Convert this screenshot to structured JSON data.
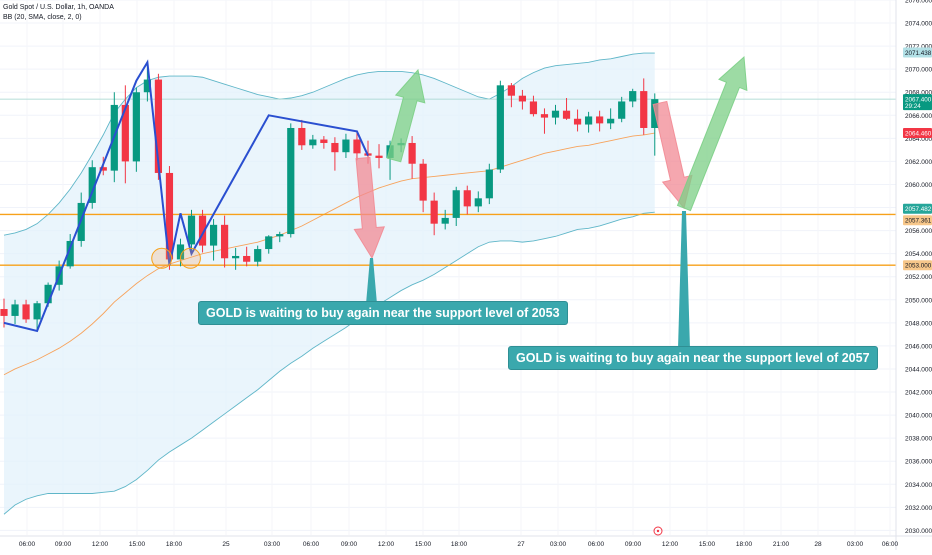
{
  "header": {
    "symbol_line": "Gold Spot / U.S. Dollar, 1h, OANDA",
    "indicator_line": "BB (20, SMA, close, 2, 0)"
  },
  "annotations": {
    "callout_1": "GOLD is waiting to buy again near the support level of 2053",
    "callout_2": "GOLD is waiting to buy again near the support level of 2057"
  },
  "colors": {
    "up": "#089981",
    "down": "#f23645",
    "bb_fill": "#e3f2fb",
    "bb_band": "#5fb6c8",
    "bb_basis": "#f7a35c",
    "support": "#f7a11a",
    "zigzag": "#2a4fd0",
    "arrow_up": "#7ccf86",
    "arrow_down": "#f28a94",
    "callout_bg": "#3aa8ad"
  },
  "chart_data": {
    "type": "candlestick",
    "title": "Gold Spot / U.S. Dollar, 1h, OANDA",
    "ylim": [
      2029.6,
      2076.0
    ],
    "y_ticks": [
      "2076.000",
      "2074.000",
      "2072.000",
      "2070.000",
      "2068.000",
      "2066.000",
      "2064.000",
      "2062.000",
      "2060.000",
      "2058.000",
      "2056.000",
      "2054.000",
      "2052.000",
      "2050.000",
      "2048.000",
      "2046.000",
      "2044.000",
      "2042.000",
      "2040.000",
      "2038.000",
      "2036.000",
      "2034.000",
      "2032.000",
      "2030.000"
    ],
    "x_ticks": [
      "06:00",
      "09:00",
      "12:00",
      "15:00",
      "18:00",
      "25",
      "03:00",
      "06:00",
      "09:00",
      "12:00",
      "15:00",
      "18:00",
      "27",
      "03:00",
      "06:00",
      "09:00",
      "12:00",
      "15:00",
      "18:00",
      "21:00",
      "28",
      "03:00",
      "06:00"
    ],
    "price_labels": {
      "upper_band": "2071.438",
      "last_price": "2067.400",
      "countdown": "29:24",
      "bb_basis": "2064.460",
      "support_upper": "2057.482",
      "support_upper_2": "2057.361",
      "support_lower": "2053.000"
    },
    "support_levels": [
      2057.4,
      2053.0
    ],
    "candles": [
      {
        "o": 2049.2,
        "h": 2050.1,
        "l": 2047.6,
        "c": 2048.6
      },
      {
        "o": 2048.6,
        "h": 2050.0,
        "l": 2047.9,
        "c": 2049.6
      },
      {
        "o": 2049.6,
        "h": 2050.0,
        "l": 2048.0,
        "c": 2048.3
      },
      {
        "o": 2048.3,
        "h": 2049.9,
        "l": 2047.3,
        "c": 2049.7
      },
      {
        "o": 2049.7,
        "h": 2051.5,
        "l": 2049.4,
        "c": 2051.3
      },
      {
        "o": 2051.3,
        "h": 2053.4,
        "l": 2050.8,
        "c": 2052.9
      },
      {
        "o": 2052.9,
        "h": 2055.7,
        "l": 2052.7,
        "c": 2055.1
      },
      {
        "o": 2055.1,
        "h": 2059.3,
        "l": 2054.6,
        "c": 2058.4
      },
      {
        "o": 2058.4,
        "h": 2062.1,
        "l": 2057.9,
        "c": 2061.5
      },
      {
        "o": 2061.5,
        "h": 2062.4,
        "l": 2060.8,
        "c": 2061.2
      },
      {
        "o": 2061.2,
        "h": 2068.0,
        "l": 2060.2,
        "c": 2066.9
      },
      {
        "o": 2066.9,
        "h": 2068.6,
        "l": 2060.1,
        "c": 2062.0
      },
      {
        "o": 2062.0,
        "h": 2068.4,
        "l": 2061.1,
        "c": 2068.0
      },
      {
        "o": 2068.0,
        "h": 2070.4,
        "l": 2067.2,
        "c": 2069.1
      },
      {
        "o": 2069.1,
        "h": 2069.6,
        "l": 2060.4,
        "c": 2061.0
      },
      {
        "o": 2061.0,
        "h": 2061.6,
        "l": 2052.6,
        "c": 2053.5
      },
      {
        "o": 2053.5,
        "h": 2055.3,
        "l": 2052.9,
        "c": 2054.8
      },
      {
        "o": 2054.8,
        "h": 2057.8,
        "l": 2054.0,
        "c": 2057.3
      },
      {
        "o": 2057.3,
        "h": 2057.8,
        "l": 2054.1,
        "c": 2054.7
      },
      {
        "o": 2054.7,
        "h": 2057.0,
        "l": 2053.4,
        "c": 2056.5
      },
      {
        "o": 2056.5,
        "h": 2057.3,
        "l": 2052.8,
        "c": 2053.6
      },
      {
        "o": 2053.6,
        "h": 2054.5,
        "l": 2052.6,
        "c": 2053.8
      },
      {
        "o": 2053.8,
        "h": 2054.6,
        "l": 2052.9,
        "c": 2053.3
      },
      {
        "o": 2053.3,
        "h": 2054.7,
        "l": 2052.9,
        "c": 2054.4
      },
      {
        "o": 2054.4,
        "h": 2055.6,
        "l": 2054.0,
        "c": 2055.5
      },
      {
        "o": 2055.5,
        "h": 2055.9,
        "l": 2055.0,
        "c": 2055.7
      },
      {
        "o": 2055.7,
        "h": 2065.3,
        "l": 2055.4,
        "c": 2064.9
      },
      {
        "o": 2064.9,
        "h": 2065.6,
        "l": 2063.0,
        "c": 2063.4
      },
      {
        "o": 2063.4,
        "h": 2064.3,
        "l": 2063.1,
        "c": 2063.9
      },
      {
        "o": 2063.9,
        "h": 2064.2,
        "l": 2063.1,
        "c": 2063.6
      },
      {
        "o": 2063.6,
        "h": 2064.1,
        "l": 2061.2,
        "c": 2062.8
      },
      {
        "o": 2062.8,
        "h": 2064.4,
        "l": 2062.3,
        "c": 2063.9
      },
      {
        "o": 2063.9,
        "h": 2064.6,
        "l": 2062.1,
        "c": 2062.7
      },
      {
        "o": 2062.7,
        "h": 2063.8,
        "l": 2061.8,
        "c": 2062.5
      },
      {
        "o": 2062.5,
        "h": 2063.5,
        "l": 2061.4,
        "c": 2062.3
      },
      {
        "o": 2062.3,
        "h": 2063.8,
        "l": 2060.4,
        "c": 2063.4
      },
      {
        "o": 2063.4,
        "h": 2064.0,
        "l": 2062.8,
        "c": 2063.6
      },
      {
        "o": 2063.6,
        "h": 2064.2,
        "l": 2060.5,
        "c": 2061.8
      },
      {
        "o": 2061.8,
        "h": 2062.2,
        "l": 2057.6,
        "c": 2058.6
      },
      {
        "o": 2058.6,
        "h": 2059.3,
        "l": 2055.6,
        "c": 2056.6
      },
      {
        "o": 2056.6,
        "h": 2057.8,
        "l": 2056.1,
        "c": 2057.1
      },
      {
        "o": 2057.1,
        "h": 2059.8,
        "l": 2056.4,
        "c": 2059.5
      },
      {
        "o": 2059.5,
        "h": 2059.9,
        "l": 2057.4,
        "c": 2058.1
      },
      {
        "o": 2058.1,
        "h": 2059.4,
        "l": 2057.6,
        "c": 2058.8
      },
      {
        "o": 2058.8,
        "h": 2061.8,
        "l": 2058.3,
        "c": 2061.3
      },
      {
        "o": 2061.3,
        "h": 2069.0,
        "l": 2061.0,
        "c": 2068.6
      },
      {
        "o": 2068.6,
        "h": 2068.8,
        "l": 2066.7,
        "c": 2067.7
      },
      {
        "o": 2067.7,
        "h": 2068.2,
        "l": 2066.5,
        "c": 2067.2
      },
      {
        "o": 2067.2,
        "h": 2067.7,
        "l": 2065.9,
        "c": 2066.1
      },
      {
        "o": 2066.1,
        "h": 2066.6,
        "l": 2064.4,
        "c": 2065.8
      },
      {
        "o": 2065.8,
        "h": 2066.9,
        "l": 2065.2,
        "c": 2066.4
      },
      {
        "o": 2066.4,
        "h": 2067.5,
        "l": 2065.6,
        "c": 2065.7
      },
      {
        "o": 2065.7,
        "h": 2066.5,
        "l": 2064.6,
        "c": 2065.2
      },
      {
        "o": 2065.2,
        "h": 2066.3,
        "l": 2064.5,
        "c": 2065.9
      },
      {
        "o": 2065.9,
        "h": 2066.4,
        "l": 2064.6,
        "c": 2065.3
      },
      {
        "o": 2065.3,
        "h": 2066.6,
        "l": 2064.8,
        "c": 2065.7
      },
      {
        "o": 2065.7,
        "h": 2067.6,
        "l": 2065.4,
        "c": 2067.2
      },
      {
        "o": 2067.2,
        "h": 2068.3,
        "l": 2066.7,
        "c": 2068.1
      },
      {
        "o": 2068.1,
        "h": 2069.2,
        "l": 2064.3,
        "c": 2064.9
      },
      {
        "o": 2064.9,
        "h": 2067.9,
        "l": 2062.5,
        "c": 2067.4
      }
    ],
    "bollinger": {
      "upper": [
        2055.6,
        2055.8,
        2056.1,
        2056.6,
        2057.4,
        2058.4,
        2059.6,
        2061.0,
        2062.6,
        2064.3,
        2066.2,
        2067.4,
        2068.4,
        2069.0,
        2069.3,
        2069.4,
        2069.4,
        2069.4,
        2069.3,
        2069.0,
        2068.7,
        2068.4,
        2068.1,
        2067.8,
        2067.6,
        2067.4,
        2067.5,
        2067.7,
        2068.0,
        2068.4,
        2068.8,
        2069.2,
        2069.5,
        2069.7,
        2069.8,
        2069.8,
        2069.8,
        2069.7,
        2069.5,
        2069.2,
        2068.8,
        2068.4,
        2068.0,
        2067.6,
        2067.4,
        2067.9,
        2068.5,
        2069.2,
        2069.7,
        2070.1,
        2070.3,
        2070.4,
        2070.5,
        2070.6,
        2070.8,
        2070.9,
        2071.1,
        2071.3,
        2071.4,
        2071.4
      ],
      "basis": [
        2043.5,
        2044.0,
        2044.4,
        2044.8,
        2045.3,
        2045.8,
        2046.4,
        2047.1,
        2047.9,
        2048.8,
        2049.8,
        2050.6,
        2051.4,
        2052.1,
        2052.7,
        2053.1,
        2053.4,
        2053.7,
        2054.0,
        2054.2,
        2054.4,
        2054.6,
        2054.8,
        2055.0,
        2055.3,
        2055.6,
        2056.0,
        2056.4,
        2056.9,
        2057.4,
        2057.9,
        2058.4,
        2058.9,
        2059.3,
        2059.7,
        2060.0,
        2060.3,
        2060.5,
        2060.6,
        2060.7,
        2060.8,
        2060.9,
        2061.0,
        2061.1,
        2061.2,
        2061.5,
        2061.8,
        2062.1,
        2062.4,
        2062.7,
        2062.9,
        2063.1,
        2063.3,
        2063.4,
        2063.6,
        2063.8,
        2064.0,
        2064.2,
        2064.3,
        2064.46
      ],
      "lower": [
        2031.4,
        2032.2,
        2032.7,
        2033.0,
        2033.2,
        2033.2,
        2033.2,
        2033.2,
        2033.2,
        2033.3,
        2033.4,
        2033.8,
        2034.4,
        2035.2,
        2036.1,
        2036.8,
        2037.4,
        2038.0,
        2038.7,
        2039.4,
        2040.1,
        2040.8,
        2041.5,
        2042.2,
        2043.0,
        2043.8,
        2044.5,
        2045.1,
        2045.8,
        2046.4,
        2047.0,
        2047.6,
        2048.3,
        2048.9,
        2049.6,
        2050.2,
        2050.8,
        2051.3,
        2051.7,
        2052.2,
        2052.8,
        2053.4,
        2054.0,
        2054.6,
        2055.0,
        2055.1,
        2055.1,
        2055.0,
        2055.1,
        2055.3,
        2055.5,
        2055.8,
        2056.1,
        2056.2,
        2056.4,
        2056.7,
        2057.0,
        2057.2,
        2057.5,
        2057.6
      ]
    }
  }
}
